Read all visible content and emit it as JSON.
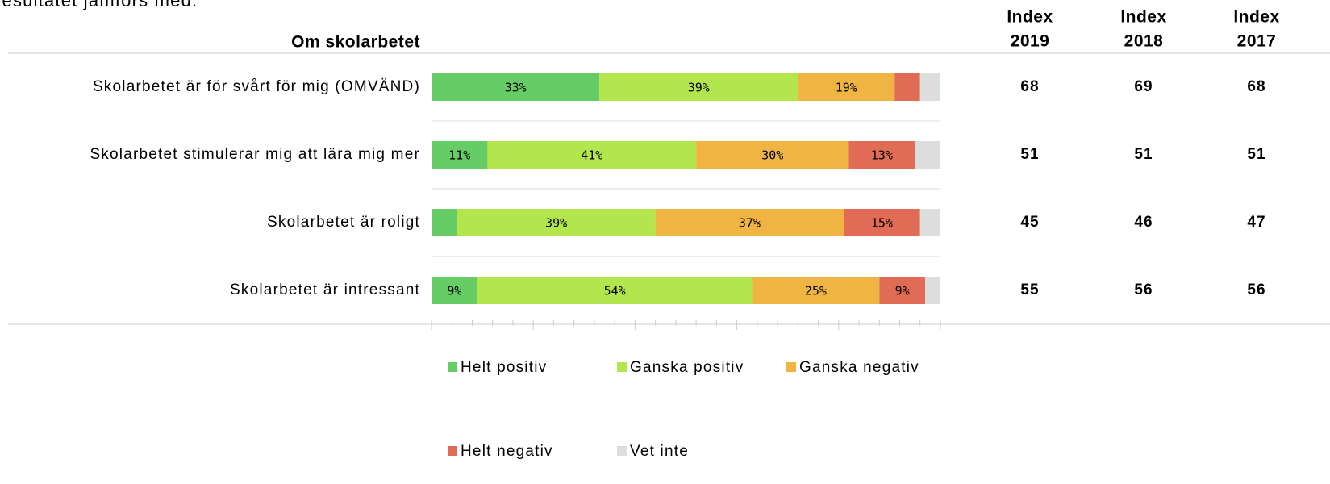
{
  "chart_data": {
    "type": "stacked_bar_horizontal",
    "note": "resultatet jämförs med.",
    "title": "Om skolarbetet",
    "categories": [
      "Skolarbetet är för svårt för mig (OMVÄND)",
      "Skolarbetet stimulerar mig att lära mig mer",
      "Skolarbetet är roligt",
      "Skolarbetet är intressant"
    ],
    "series": [
      {
        "name": "Helt positiv",
        "color": "#66cc66",
        "values": [
          33,
          11,
          5,
          9
        ],
        "value_labels": [
          "33%",
          "11%",
          null,
          "9%"
        ]
      },
      {
        "name": "Ganska positiv",
        "color": "#b3e64d",
        "values": [
          39,
          41,
          39,
          54
        ],
        "value_labels": [
          "39%",
          "41%",
          "39%",
          "54%"
        ]
      },
      {
        "name": "Ganska negativ",
        "color": "#f0b443",
        "values": [
          19,
          30,
          37,
          25
        ],
        "value_labels": [
          "19%",
          "30%",
          "37%",
          "25%"
        ]
      },
      {
        "name": "Helt negativ",
        "color": "#e06c55",
        "values": [
          5,
          13,
          15,
          9
        ],
        "value_labels": [
          null,
          "13%",
          "15%",
          "9%"
        ]
      },
      {
        "name": "Vet inte",
        "color": "#dddddd",
        "values": [
          4,
          5,
          4,
          3
        ],
        "value_labels": [
          null,
          null,
          null,
          null
        ]
      }
    ],
    "xlim": [
      0,
      100
    ],
    "xticks": [
      0,
      4,
      8,
      12,
      16,
      20,
      24,
      28,
      32,
      36,
      40,
      44,
      48,
      52,
      56,
      60,
      64,
      68,
      72,
      76,
      80,
      84,
      88,
      92,
      96,
      100
    ],
    "index_header": "Index",
    "index_years": [
      "2019",
      "2018",
      "2017"
    ],
    "index_values": [
      [
        "68",
        "69",
        "68"
      ],
      [
        "51",
        "51",
        "51"
      ],
      [
        "45",
        "46",
        "47"
      ],
      [
        "55",
        "56",
        "56"
      ]
    ]
  }
}
